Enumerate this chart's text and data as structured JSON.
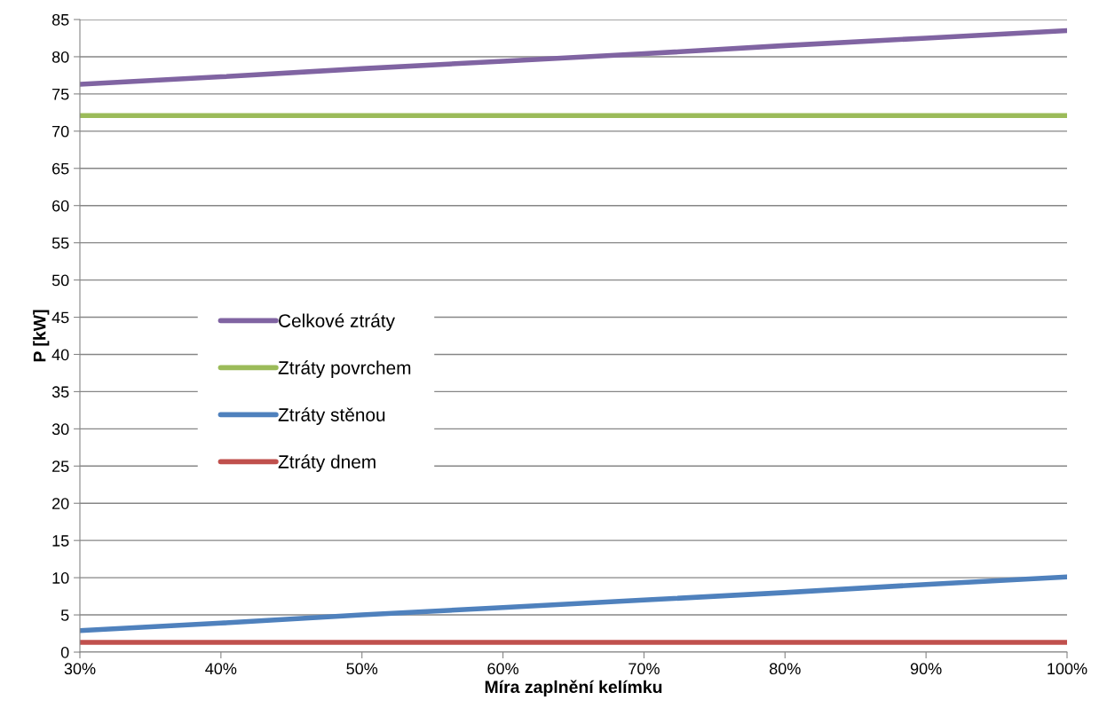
{
  "chart_data": {
    "type": "line",
    "xlabel": "Míra zaplnění kelímku",
    "ylabel": "P [kW]",
    "x": [
      30,
      40,
      50,
      60,
      70,
      80,
      90,
      100
    ],
    "series": [
      {
        "name": "Celkové ztráty",
        "color": "#8064a2",
        "values": [
          76.3,
          77.3,
          78.4,
          79.4,
          80.4,
          81.5,
          82.5,
          83.5
        ]
      },
      {
        "name": "Ztráty povrchem",
        "color": "#9bbb59",
        "values": [
          72.1,
          72.1,
          72.1,
          72.1,
          72.1,
          72.1,
          72.1,
          72.1
        ]
      },
      {
        "name": "Ztráty stěnou",
        "color": "#4f81bd",
        "values": [
          2.9,
          3.9,
          5.0,
          6.0,
          7.0,
          8.0,
          9.1,
          10.1
        ]
      },
      {
        "name": "Ztráty dnem",
        "color": "#c0504d",
        "values": [
          1.3,
          1.3,
          1.3,
          1.3,
          1.3,
          1.3,
          1.3,
          1.3
        ]
      }
    ],
    "xlim": [
      30,
      100
    ],
    "xticks": [
      {
        "value": 30,
        "label": "30%"
      },
      {
        "value": 40,
        "label": "40%"
      },
      {
        "value": 50,
        "label": "50%"
      },
      {
        "value": 60,
        "label": "60%"
      },
      {
        "value": 70,
        "label": "70%"
      },
      {
        "value": 80,
        "label": "80%"
      },
      {
        "value": 90,
        "label": "90%"
      },
      {
        "value": 100,
        "label": "100%"
      }
    ],
    "ylim": [
      0,
      85
    ],
    "yticks": [
      0,
      5,
      10,
      15,
      20,
      25,
      30,
      35,
      40,
      45,
      50,
      55,
      60,
      65,
      70,
      75,
      80,
      85
    ],
    "grid": "y",
    "legend": "left",
    "marker": "none",
    "line_style": "solid"
  }
}
